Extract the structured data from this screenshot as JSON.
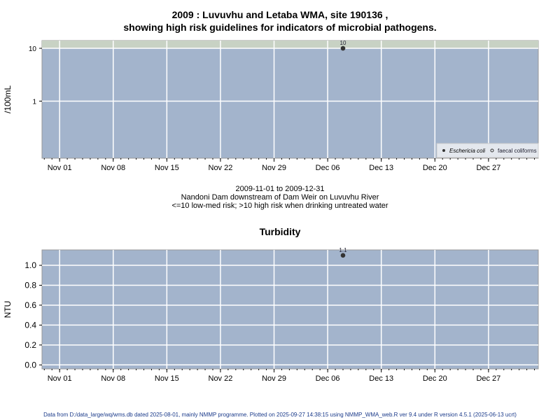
{
  "chart_data": [
    {
      "type": "scatter",
      "title_line1": "2009 : Luvuvhu and Letaba WMA, site 190136 ,",
      "title_line2": "showing high risk guidelines for indicators of microbial pathogens.",
      "ylabel": "/100mL",
      "yscale": "log",
      "ylim": [
        0.083,
        14
      ],
      "yticks": [
        {
          "v": 1,
          "label": "1"
        },
        {
          "v": 10,
          "label": "10"
        }
      ],
      "high_risk_threshold": 10,
      "colors": {
        "panel": "#a3b4cc",
        "high_risk_band": "#c8d2c4",
        "grid": "#ffffff",
        "point": "#333333"
      },
      "xlim_days": [
        -2.3,
        62.5
      ],
      "xticks": [
        {
          "d": 0,
          "label": "Nov 01"
        },
        {
          "d": 7,
          "label": "Nov 08"
        },
        {
          "d": 14,
          "label": "Nov 15"
        },
        {
          "d": 21,
          "label": "Nov 22"
        },
        {
          "d": 28,
          "label": "Nov 29"
        },
        {
          "d": 35,
          "label": "Dec 06"
        },
        {
          "d": 42,
          "label": "Dec 13"
        },
        {
          "d": 49,
          "label": "Dec 20"
        },
        {
          "d": 56,
          "label": "Dec 27"
        }
      ],
      "series": [
        {
          "name": "Eschericia coli",
          "marker": "filled",
          "points": [
            {
              "d": 37,
              "date": "2009-12-08",
              "y": 10,
              "label": "10"
            }
          ]
        },
        {
          "name": "faecal coliforms",
          "marker": "open",
          "points": []
        }
      ],
      "legend": "bottom-right",
      "caption": [
        "2009-11-01 to 2009-12-31",
        "Nandoni Dam downstream of Dam Weir on Luvuvhu River",
        "<=10 low-med risk; >10 high risk when drinking untreated water"
      ]
    },
    {
      "type": "scatter",
      "title": "Turbidity",
      "ylabel": "NTU",
      "ylim": [
        -0.04,
        1.155
      ],
      "yticks": [
        {
          "v": 0,
          "label": "0.0"
        },
        {
          "v": 0.2,
          "label": "0.2"
        },
        {
          "v": 0.4,
          "label": "0.4"
        },
        {
          "v": 0.6,
          "label": "0.6"
        },
        {
          "v": 0.8,
          "label": "0.8"
        },
        {
          "v": 1.0,
          "label": "1.0"
        }
      ],
      "xlim_days": [
        -2.3,
        62.5
      ],
      "series": [
        {
          "name": "Turbidity",
          "points": [
            {
              "d": 37,
              "date": "2009-12-08",
              "y": 1.1,
              "label": "1.1"
            }
          ]
        }
      ]
    }
  ],
  "footer": "Data from D:/data_large/wq/wms.db dated 2025-08-01, mainly NMMP programme. Plotted on 2025-09-27 14:38:15 using NMMP_WMA_web.R ver 9.4 under R version 4.5.1 (2025-06-13 ucrt)"
}
